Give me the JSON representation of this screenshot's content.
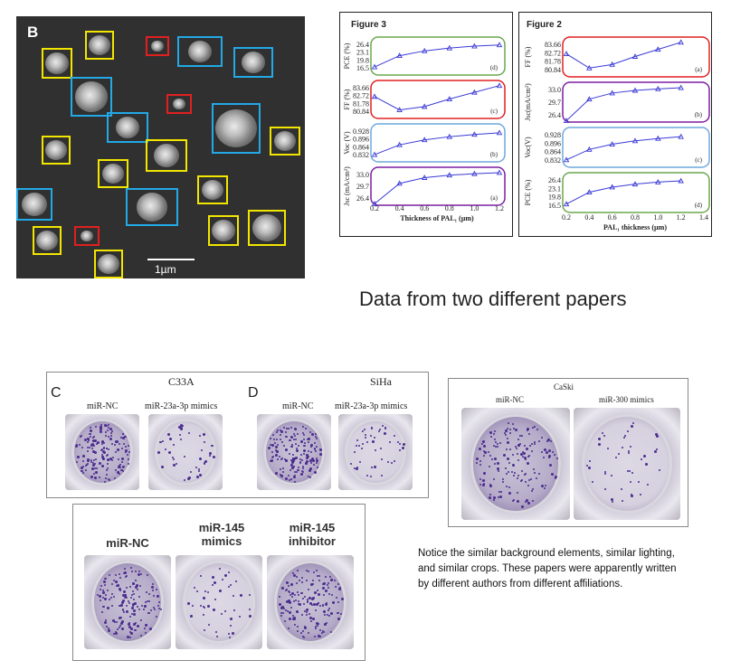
{
  "micrograph": {
    "panel_label": "B",
    "scale_label": "1µm"
  },
  "figure3": {
    "title": "Figure 3",
    "xlabel": "Thickness of PAL₁ (µm)",
    "x_ticks": [
      "0.2",
      "0.4",
      "0.6",
      "0.8",
      "1.0",
      "1.2"
    ],
    "subplots": [
      {
        "ylabel": "PCE (%)",
        "tag": "(d)",
        "ticks": [
          "26.4",
          "23.1",
          "19.8",
          "16.5"
        ]
      },
      {
        "ylabel": "FF (%)",
        "tag": "(c)",
        "ticks": [
          "83.66",
          "82.72",
          "81.78",
          "80.84"
        ]
      },
      {
        "ylabel": "Voc (V)",
        "tag": "(b)",
        "ticks": [
          "0.928",
          "0.896",
          "0.864",
          "0.832"
        ]
      },
      {
        "ylabel": "Jsc (mA/cm²)",
        "tag": "(a)",
        "ticks": [
          "33.0",
          "29.7",
          "26.4"
        ]
      }
    ]
  },
  "figure2": {
    "title": "Figure 2",
    "xlabel": "PAL₁ thickness (µm)",
    "x_ticks": [
      "0.2",
      "0.4",
      "0.6",
      "0.8",
      "1.0",
      "1.2",
      "1.4"
    ],
    "subplots": [
      {
        "ylabel": "FF (%)",
        "tag": "(a)",
        "ticks": [
          "83.66",
          "82.72",
          "81.78",
          "80.84"
        ]
      },
      {
        "ylabel": "Jsc(mA/cm²)",
        "tag": "(b)",
        "ticks": [
          "33.0",
          "29.7",
          "26.4"
        ]
      },
      {
        "ylabel": "Voc(V)",
        "tag": "(c)",
        "ticks": [
          "0.928",
          "0.896",
          "0.864",
          "0.832"
        ]
      },
      {
        "ylabel": "PCE (%)",
        "tag": "(d)",
        "ticks": [
          "26.4",
          "23.1",
          "19.8",
          "16.5"
        ]
      }
    ]
  },
  "caption_top": "Data from two different  papers",
  "panel_left": {
    "label_c": "C",
    "label_d": "D",
    "cell_c": "C33A",
    "cell_d": "SiHa",
    "c_nc": "miR-NC",
    "c_mimic": "miR-23a-3p mimics",
    "d_nc": "miR-NC",
    "d_mimic": "miR-23a-3p mimics"
  },
  "panel_right": {
    "cell": "CaSki",
    "nc": "miR-NC",
    "mimic": "miR-300 mimics"
  },
  "panel_bottom": {
    "nc": "miR-NC",
    "mimic": "miR-145\nmimics",
    "inhibitor": "miR-145\ninhibitor"
  },
  "note": "Notice the similar background elements, similar lighting, and similar crops. These papers were apparently written by different authors from different affiliations.",
  "chart_data": [
    {
      "type": "line",
      "title": "Figure 3",
      "xlabel": "Thickness of PAL₁ (µm)",
      "x": [
        0.2,
        0.4,
        0.6,
        0.8,
        1.0,
        1.2
      ],
      "series": [
        {
          "name": "PCE (%)",
          "values": [
            16.9,
            21.6,
            23.6,
            24.8,
            25.6,
            26.1
          ]
        },
        {
          "name": "FF (%)",
          "values": [
            82.6,
            81.0,
            81.4,
            82.3,
            83.1,
            83.9
          ]
        },
        {
          "name": "Voc (V)",
          "values": [
            0.832,
            0.872,
            0.892,
            0.905,
            0.914,
            0.921
          ]
        },
        {
          "name": "Jsc (mA/cm²)",
          "values": [
            24.8,
            30.5,
            32.1,
            32.8,
            33.2,
            33.5
          ]
        }
      ]
    },
    {
      "type": "line",
      "title": "Figure 2",
      "xlabel": "PAL₁ thickness (µm)",
      "x": [
        0.2,
        0.4,
        0.6,
        0.8,
        1.0,
        1.2
      ],
      "series": [
        {
          "name": "FF (%)",
          "values": [
            82.6,
            81.0,
            81.4,
            82.3,
            83.1,
            83.9
          ]
        },
        {
          "name": "Jsc(mA/cm²)",
          "values": [
            24.8,
            30.5,
            32.1,
            32.8,
            33.2,
            33.5
          ]
        },
        {
          "name": "Voc(V)",
          "values": [
            0.832,
            0.872,
            0.892,
            0.905,
            0.914,
            0.921
          ]
        },
        {
          "name": "PCE (%)",
          "values": [
            16.9,
            21.6,
            23.6,
            24.8,
            25.6,
            26.1
          ]
        }
      ]
    }
  ]
}
